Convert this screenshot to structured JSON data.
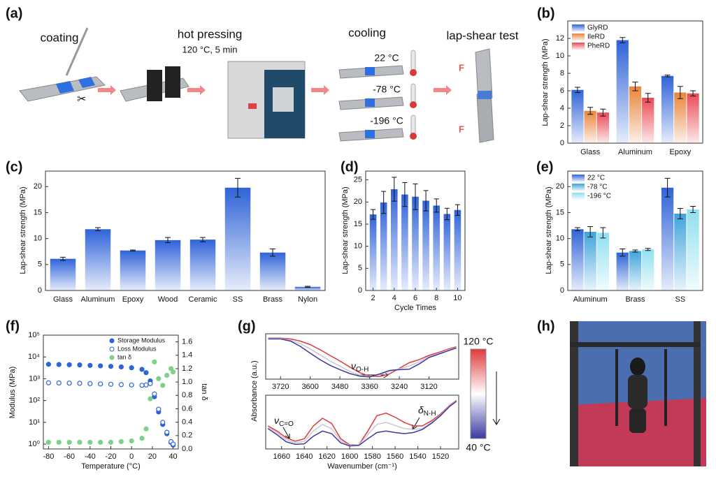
{
  "diagram": {
    "panel": "(a)",
    "steps": [
      "coating",
      "hot pressing",
      "cooling",
      "lap-shear test"
    ],
    "condition": "120 °C, 5 min",
    "temperatures": [
      "22 °C",
      "-78 °C",
      "-196 °C"
    ],
    "forces": [
      "F",
      "F"
    ]
  },
  "photo": {
    "panel": "(h)"
  },
  "chart_data": [
    {
      "type": "bar",
      "panel": "(b)",
      "ylabel": "Lap-shear strength (MPa)",
      "categories": [
        "Glass",
        "Aluminum",
        "Epoxy"
      ],
      "series": [
        {
          "name": "GlyRD",
          "color": "#2f63d8",
          "values": [
            6.1,
            11.8,
            7.7
          ],
          "errors": [
            0.3,
            0.3,
            0.1
          ]
        },
        {
          "name": "IleRD",
          "color": "#e8853a",
          "values": [
            3.7,
            6.5,
            5.8
          ],
          "errors": [
            0.4,
            0.5,
            0.7
          ]
        },
        {
          "name": "PheRD",
          "color": "#ea4a55",
          "values": [
            3.5,
            5.2,
            5.7
          ],
          "errors": [
            0.4,
            0.5,
            0.3
          ]
        }
      ],
      "ylim": [
        0,
        14
      ],
      "yticks": [
        0,
        2,
        4,
        6,
        8,
        10,
        12
      ],
      "legend": "upper left"
    },
    {
      "type": "bar",
      "panel": "(c)",
      "ylabel": "Lap-shear strength (MPa)",
      "categories": [
        "Glass",
        "Aluminum",
        "Epoxy",
        "Wood",
        "Ceramic",
        "SS",
        "Brass",
        "Nylon"
      ],
      "values": [
        6.1,
        11.8,
        7.7,
        9.7,
        9.8,
        19.8,
        7.3,
        0.7
      ],
      "errors": [
        0.3,
        0.3,
        0.1,
        0.5,
        0.4,
        1.8,
        0.7,
        0.1
      ],
      "color": "#2f63d8",
      "ylim": [
        0,
        23
      ],
      "yticks": [
        0,
        5,
        10,
        15,
        20
      ]
    },
    {
      "type": "bar",
      "panel": "(d)",
      "ylabel": "Lap-shear strength (MPa)",
      "xlabel": "Cycle Times",
      "x": [
        2,
        3,
        4,
        5,
        6,
        7,
        8,
        9,
        10
      ],
      "values": [
        17.2,
        19.9,
        22.9,
        21.7,
        21.2,
        20.3,
        19.2,
        17.3,
        18.2
      ],
      "errors": [
        1.1,
        2.5,
        2.7,
        2.7,
        2.9,
        2.3,
        1.5,
        1.3,
        1.2
      ],
      "color": "#2f63d8",
      "xlim": [
        1.3,
        10.7
      ],
      "xticks": [
        2,
        4,
        6,
        8,
        10
      ],
      "ylim": [
        0,
        27
      ],
      "yticks": [
        0,
        5,
        10,
        15,
        20,
        25
      ]
    },
    {
      "type": "bar",
      "panel": "(e)",
      "ylabel": "Lap-shear strength (MPa)",
      "categories": [
        "Aluminum",
        "Brass",
        "SS"
      ],
      "series": [
        {
          "name": "22 °C",
          "color": "#2f63d8",
          "values": [
            11.8,
            7.3,
            19.8
          ],
          "errors": [
            0.3,
            0.7,
            1.8
          ]
        },
        {
          "name": "-78 °C",
          "color": "#3fa3dc",
          "values": [
            11.3,
            7.6,
            14.8
          ],
          "errors": [
            1.0,
            0.2,
            1.0
          ]
        },
        {
          "name": "-196 °C",
          "color": "#8fe0f0",
          "values": [
            11.1,
            7.9,
            15.6
          ],
          "errors": [
            1.0,
            0.2,
            0.6
          ]
        }
      ],
      "ylim": [
        0,
        23
      ],
      "yticks": [
        0,
        5,
        10,
        15,
        20
      ],
      "legend": "upper left"
    },
    {
      "type": "scatter",
      "panel": "(f)",
      "xlabel": "Temperature (°C)",
      "ylabel": "Modulus (MPa)",
      "y2label": "tan δ",
      "log_y": true,
      "x": [
        -80,
        -70,
        -60,
        -50,
        -40,
        -30,
        -20,
        -10,
        0,
        10,
        14,
        18,
        22,
        26,
        30,
        34,
        38,
        40
      ],
      "series": [
        {
          "name": "Storage Modulus",
          "color": "#2f63d8",
          "marker": "filled",
          "values": [
            4600,
            4500,
            4400,
            4300,
            4100,
            3900,
            3700,
            3500,
            3200,
            2700,
            1900,
            800,
            150,
            30,
            8,
            3,
            1.2,
            0.9
          ]
        },
        {
          "name": "Loss Modulus",
          "color": "#2f63d8",
          "marker": "open",
          "values": [
            650,
            640,
            630,
            620,
            600,
            580,
            560,
            540,
            520,
            500,
            520,
            600,
            200,
            40,
            10,
            3.5,
            1.3,
            1.0
          ]
        },
        {
          "name": "tan δ",
          "color": "#7fd08a",
          "marker": "filled",
          "axis": "y2",
          "values": [
            0.1,
            0.1,
            0.1,
            0.1,
            0.1,
            0.1,
            0.1,
            0.11,
            0.12,
            0.16,
            0.3,
            0.75,
            1.3,
            1.05,
            0.95,
            1.1,
            1.2,
            1.15
          ]
        }
      ],
      "xlim": [
        -85,
        45
      ],
      "xticks": [
        -80,
        -60,
        -40,
        -20,
        0,
        20,
        40
      ],
      "ylim": [
        0.6,
        100000
      ],
      "yticks": [
        {
          "value": 1,
          "label": "10⁰"
        },
        {
          "value": 10,
          "label": "10¹"
        },
        {
          "value": 100,
          "label": "10²"
        },
        {
          "value": 1000,
          "label": "10³"
        },
        {
          "value": 10000,
          "label": "10⁴"
        },
        {
          "value": 100000,
          "label": "10⁵"
        }
      ],
      "y2lim": [
        0,
        1.7
      ],
      "y2ticks": [
        {
          "value": 0,
          "label": "0.0"
        },
        0.2,
        0.4,
        0.6,
        0.8,
        {
          "value": 1,
          "label": "1.0"
        },
        1.2,
        1.4,
        1.6
      ],
      "legend": "upper right"
    },
    {
      "type": "line",
      "panel": "(g)",
      "ylabel": "Absorbance (a.u.)",
      "x": [
        3770,
        3720,
        3680,
        3640,
        3600,
        3560,
        3520,
        3480,
        3440,
        3400,
        3360,
        3320,
        3280,
        3240,
        3200,
        3160,
        3120,
        3080,
        3040,
        3010
      ],
      "series": [
        {
          "color": "#e03a3a",
          "values": [
            0.95,
            0.95,
            0.93,
            0.88,
            0.8,
            0.68,
            0.55,
            0.42,
            0.28,
            0.15,
            0.07,
            0.06,
            0.12,
            0.25,
            0.38,
            0.45,
            0.55,
            0.62,
            0.7,
            0.75
          ]
        },
        {
          "color": "#c8c8d8",
          "values": [
            0.94,
            0.94,
            0.9,
            0.82,
            0.7,
            0.56,
            0.42,
            0.3,
            0.18,
            0.09,
            0.06,
            0.1,
            0.18,
            0.24,
            0.3,
            0.4,
            0.52,
            0.6,
            0.68,
            0.73
          ]
        },
        {
          "color": "#3a3aa0",
          "values": [
            0.93,
            0.93,
            0.88,
            0.76,
            0.6,
            0.45,
            0.32,
            0.22,
            0.13,
            0.07,
            0.05,
            0.12,
            0.2,
            0.22,
            0.23,
            0.35,
            0.5,
            0.58,
            0.66,
            0.72
          ]
        }
      ],
      "xlim": [
        3780,
        3000
      ],
      "xticks": [
        3720,
        3600,
        3480,
        3360,
        3240,
        3120
      ],
      "ylim": [
        0,
        1.05
      ],
      "annotations": [
        {
          "symbol": "ν",
          "subscript": "O-H"
        }
      ]
    },
    {
      "type": "line",
      "xlabel": "Wavenumber (cm⁻¹)",
      "x": [
        1672,
        1664,
        1656,
        1648,
        1640,
        1632,
        1624,
        1616,
        1608,
        1600,
        1592,
        1584,
        1576,
        1568,
        1560,
        1552,
        1544,
        1536,
        1528,
        1520,
        1512,
        1506
      ],
      "series": [
        {
          "color": "#e03a3a",
          "values": [
            0.45,
            0.35,
            0.22,
            0.15,
            0.2,
            0.45,
            0.6,
            0.5,
            0.2,
            0.08,
            0.08,
            0.35,
            0.65,
            0.7,
            0.62,
            0.52,
            0.45,
            0.45,
            0.55,
            0.68,
            0.85,
            0.95
          ]
        },
        {
          "color": "#c8c8d8",
          "values": [
            0.43,
            0.32,
            0.18,
            0.12,
            0.15,
            0.35,
            0.48,
            0.4,
            0.16,
            0.07,
            0.08,
            0.28,
            0.48,
            0.52,
            0.46,
            0.4,
            0.38,
            0.4,
            0.52,
            0.66,
            0.84,
            0.94
          ]
        },
        {
          "color": "#3a3aa0",
          "values": [
            0.4,
            0.28,
            0.14,
            0.09,
            0.1,
            0.25,
            0.35,
            0.3,
            0.12,
            0.06,
            0.07,
            0.2,
            0.32,
            0.35,
            0.32,
            0.3,
            0.32,
            0.38,
            0.5,
            0.65,
            0.83,
            0.93
          ]
        }
      ],
      "xlim": [
        1674,
        1504
      ],
      "xticks": [
        1660,
        1640,
        1620,
        1600,
        1580,
        1560,
        1540,
        1520
      ],
      "ylim": [
        0,
        1.05
      ],
      "annotations": [
        {
          "symbol": "ν",
          "subscript": "C=O"
        },
        {
          "symbol": "δ",
          "subscript": "N-H"
        }
      ],
      "colorbar": {
        "max_label": "120 °C",
        "min_label": "40 °C",
        "colors": [
          "#e03a3a",
          "#ffffff",
          "#3a3aa0"
        ]
      }
    }
  ]
}
